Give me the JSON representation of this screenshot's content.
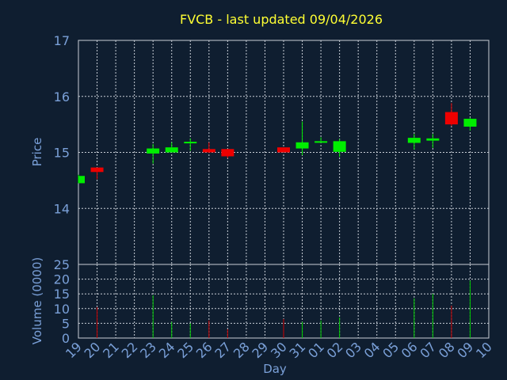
{
  "chart_data": {
    "type": "candlestick",
    "title": "FVCB - last updated 09/04/2026",
    "xlabel": "Day",
    "x_ticks": [
      "19",
      "20",
      "21",
      "22",
      "23",
      "24",
      "25",
      "26",
      "27",
      "28",
      "29",
      "30",
      "31",
      "01",
      "02",
      "03",
      "04",
      "05",
      "06",
      "07",
      "08",
      "09",
      "10"
    ],
    "price_panel": {
      "ylabel": "Price",
      "ylim": [
        13,
        17
      ],
      "y_ticks": [
        14,
        15,
        16,
        17
      ],
      "grid": true
    },
    "volume_panel": {
      "ylabel": "Volume (0000)",
      "ylim": [
        0,
        25
      ],
      "y_ticks": [
        0,
        5,
        10,
        15,
        20,
        25
      ],
      "grid": true
    },
    "candles": [
      {
        "day": "19",
        "open": 14.45,
        "close": 14.58,
        "high": 14.6,
        "low": 14.45,
        "volume": 0
      },
      {
        "day": "20",
        "open": 14.73,
        "close": 14.65,
        "high": 14.73,
        "low": 14.52,
        "volume": 10.5
      },
      {
        "day": "23",
        "open": 14.98,
        "close": 15.07,
        "high": 15.15,
        "low": 14.8,
        "volume": 14.5
      },
      {
        "day": "24",
        "open": 15.0,
        "close": 15.09,
        "high": 15.18,
        "low": 15.0,
        "volume": 5.5
      },
      {
        "day": "25",
        "open": 15.17,
        "close": 15.19,
        "high": 15.25,
        "low": 15.03,
        "volume": 5.0
      },
      {
        "day": "26",
        "open": 15.06,
        "close": 15.0,
        "high": 15.18,
        "low": 14.99,
        "volume": 6.0
      },
      {
        "day": "27",
        "open": 15.06,
        "close": 14.93,
        "high": 15.06,
        "low": 14.9,
        "volume": 3.0
      },
      {
        "day": "30",
        "open": 15.09,
        "close": 15.0,
        "high": 15.09,
        "low": 15.0,
        "volume": 6.5
      },
      {
        "day": "31",
        "open": 15.07,
        "close": 15.18,
        "high": 15.55,
        "low": 14.95,
        "volume": 5.5
      },
      {
        "day": "01",
        "open": 15.18,
        "close": 15.2,
        "high": 15.27,
        "low": 15.17,
        "volume": 6.0
      },
      {
        "day": "02",
        "open": 15.01,
        "close": 15.2,
        "high": 15.24,
        "low": 14.92,
        "volume": 7.0
      },
      {
        "day": "06",
        "open": 15.17,
        "close": 15.26,
        "high": 15.33,
        "low": 15.05,
        "volume": 13.5
      },
      {
        "day": "07",
        "open": 15.21,
        "close": 15.25,
        "high": 15.33,
        "low": 15.08,
        "volume": 15.0
      },
      {
        "day": "08",
        "open": 15.72,
        "close": 15.5,
        "high": 15.88,
        "low": 15.47,
        "volume": 11.0
      },
      {
        "day": "09",
        "open": 15.46,
        "close": 15.6,
        "high": 15.62,
        "low": 15.39,
        "volume": 19.5
      }
    ],
    "colors": {
      "up": "#00ee00",
      "down": "#ee0000",
      "up_volume": "#00cc00",
      "down_volume": "#cc0000",
      "background": "#0f1e30",
      "axis_text": "#7aa0d8",
      "title": "#ffff33",
      "grid": "#c8ced6"
    }
  }
}
